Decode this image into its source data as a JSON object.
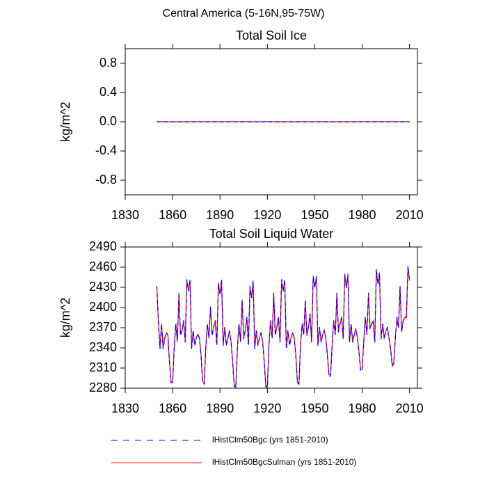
{
  "title": "Central America (5-16N,95-75W)",
  "chart_data": [
    {
      "type": "line",
      "title": "Total Soil Ice",
      "ylabel": "kg/m^2",
      "xlim": [
        1830,
        2015
      ],
      "xticks": [
        1830,
        1860,
        1890,
        1920,
        1950,
        1980,
        2010
      ],
      "ylim": [
        -1,
        1
      ],
      "yticks": [
        {
          "value": 0.8,
          "label": "0.8"
        },
        {
          "value": 0.4,
          "label": "0.4"
        },
        {
          "value": 0,
          "label": "0.0"
        },
        {
          "value": -0.4,
          "label": "-0.4"
        },
        {
          "value": -0.8,
          "label": "-0.8"
        }
      ],
      "x": [
        1850,
        1851,
        1852,
        1853,
        1854,
        1855,
        1856,
        1857,
        1858,
        1859,
        1860,
        1861,
        1862,
        1863,
        1864,
        1865,
        1866,
        1867,
        1868,
        1869,
        1870,
        1871,
        1872,
        1873,
        1874,
        1875,
        1876,
        1877,
        1878,
        1879,
        1880,
        1881,
        1882,
        1883,
        1884,
        1885,
        1886,
        1887,
        1888,
        1889,
        1890,
        1891,
        1892,
        1893,
        1894,
        1895,
        1896,
        1897,
        1898,
        1899,
        1900,
        1901,
        1902,
        1903,
        1904,
        1905,
        1906,
        1907,
        1908,
        1909,
        1910,
        1911,
        1912,
        1913,
        1914,
        1915,
        1916,
        1917,
        1918,
        1919,
        1920,
        1921,
        1922,
        1923,
        1924,
        1925,
        1926,
        1927,
        1928,
        1929,
        1930,
        1931,
        1932,
        1933,
        1934,
        1935,
        1936,
        1937,
        1938,
        1939,
        1940,
        1941,
        1942,
        1943,
        1944,
        1945,
        1946,
        1947,
        1948,
        1949,
        1950,
        1951,
        1952,
        1953,
        1954,
        1955,
        1956,
        1957,
        1958,
        1959,
        1960,
        1961,
        1962,
        1963,
        1964,
        1965,
        1966,
        1967,
        1968,
        1969,
        1970,
        1971,
        1972,
        1973,
        1974,
        1975,
        1976,
        1977,
        1978,
        1979,
        1980,
        1981,
        1982,
        1983,
        1984,
        1985,
        1986,
        1987,
        1988,
        1989,
        1990,
        1991,
        1992,
        1993,
        1994,
        1995,
        1996,
        1997,
        1998,
        1999,
        2000,
        2001,
        2002,
        2003,
        2004,
        2005,
        2006,
        2007,
        2008,
        2009,
        2010
      ],
      "series": [
        {
          "color": "#ff0000",
          "dashed": false,
          "values": [
            0,
            0,
            0,
            0,
            0,
            0,
            0,
            0,
            0,
            0,
            0,
            0,
            0,
            0,
            0,
            0,
            0,
            0,
            0,
            0,
            0,
            0,
            0,
            0,
            0,
            0,
            0,
            0,
            0,
            0,
            0,
            0,
            0,
            0,
            0,
            0,
            0,
            0,
            0,
            0,
            0,
            0,
            0,
            0,
            0,
            0,
            0,
            0,
            0,
            0,
            0,
            0,
            0,
            0,
            0,
            0,
            0,
            0,
            0,
            0,
            0,
            0,
            0,
            0,
            0,
            0,
            0,
            0,
            0,
            0,
            0,
            0,
            0,
            0,
            0,
            0,
            0,
            0,
            0,
            0,
            0,
            0,
            0,
            0,
            0,
            0,
            0,
            0,
            0,
            0,
            0,
            0,
            0,
            0,
            0,
            0,
            0,
            0,
            0,
            0,
            0,
            0,
            0,
            0,
            0,
            0,
            0,
            0,
            0,
            0,
            0,
            0,
            0,
            0,
            0,
            0,
            0,
            0,
            0,
            0,
            0,
            0,
            0,
            0,
            0,
            0,
            0,
            0,
            0,
            0,
            0,
            0,
            0,
            0,
            0,
            0,
            0,
            0,
            0,
            0,
            0,
            0,
            0,
            0,
            0,
            0,
            0,
            0,
            0,
            0,
            0,
            0,
            0,
            0,
            0,
            0,
            0,
            0,
            0,
            0,
            0
          ]
        },
        {
          "color": "#0000ff",
          "dashed": true,
          "values": [
            0,
            0,
            0,
            0,
            0,
            0,
            0,
            0,
            0,
            0,
            0,
            0,
            0,
            0,
            0,
            0,
            0,
            0,
            0,
            0,
            0,
            0,
            0,
            0,
            0,
            0,
            0,
            0,
            0,
            0,
            0,
            0,
            0,
            0,
            0,
            0,
            0,
            0,
            0,
            0,
            0,
            0,
            0,
            0,
            0,
            0,
            0,
            0,
            0,
            0,
            0,
            0,
            0,
            0,
            0,
            0,
            0,
            0,
            0,
            0,
            0,
            0,
            0,
            0,
            0,
            0,
            0,
            0,
            0,
            0,
            0,
            0,
            0,
            0,
            0,
            0,
            0,
            0,
            0,
            0,
            0,
            0,
            0,
            0,
            0,
            0,
            0,
            0,
            0,
            0,
            0,
            0,
            0,
            0,
            0,
            0,
            0,
            0,
            0,
            0,
            0,
            0,
            0,
            0,
            0,
            0,
            0,
            0,
            0,
            0,
            0,
            0,
            0,
            0,
            0,
            0,
            0,
            0,
            0,
            0,
            0,
            0,
            0,
            0,
            0,
            0,
            0,
            0,
            0,
            0,
            0,
            0,
            0,
            0,
            0,
            0,
            0,
            0,
            0,
            0,
            0,
            0,
            0,
            0,
            0,
            0,
            0,
            0,
            0,
            0,
            0,
            0,
            0,
            0,
            0,
            0,
            0,
            0,
            0,
            0,
            0
          ]
        }
      ]
    },
    {
      "type": "line",
      "title": "Total Soil Liquid Water",
      "ylabel": "kg/m^2",
      "xlim": [
        1830,
        2015
      ],
      "xticks": [
        1830,
        1860,
        1890,
        1920,
        1950,
        1980,
        2010
      ],
      "ylim": [
        2280,
        2490
      ],
      "yticks": [
        2280,
        2310,
        2340,
        2370,
        2400,
        2430,
        2460,
        2490
      ],
      "x": [
        1850,
        1851,
        1852,
        1853,
        1854,
        1855,
        1856,
        1857,
        1858,
        1859,
        1860,
        1861,
        1862,
        1863,
        1864,
        1865,
        1866,
        1867,
        1868,
        1869,
        1870,
        1871,
        1872,
        1873,
        1874,
        1875,
        1876,
        1877,
        1878,
        1879,
        1880,
        1881,
        1882,
        1883,
        1884,
        1885,
        1886,
        1887,
        1888,
        1889,
        1890,
        1891,
        1892,
        1893,
        1894,
        1895,
        1896,
        1897,
        1898,
        1899,
        1900,
        1901,
        1902,
        1903,
        1904,
        1905,
        1906,
        1907,
        1908,
        1909,
        1910,
        1911,
        1912,
        1913,
        1914,
        1915,
        1916,
        1917,
        1918,
        1919,
        1920,
        1921,
        1922,
        1923,
        1924,
        1925,
        1926,
        1927,
        1928,
        1929,
        1930,
        1931,
        1932,
        1933,
        1934,
        1935,
        1936,
        1937,
        1938,
        1939,
        1940,
        1941,
        1942,
        1943,
        1944,
        1945,
        1946,
        1947,
        1948,
        1949,
        1950,
        1951,
        1952,
        1953,
        1954,
        1955,
        1956,
        1957,
        1958,
        1959,
        1960,
        1961,
        1962,
        1963,
        1964,
        1965,
        1966,
        1967,
        1968,
        1969,
        1970,
        1971,
        1972,
        1973,
        1974,
        1975,
        1976,
        1977,
        1978,
        1979,
        1980,
        1981,
        1982,
        1983,
        1984,
        1985,
        1986,
        1987,
        1988,
        1989,
        1990,
        1991,
        1992,
        1993,
        1994,
        1995,
        1996,
        1997,
        1998,
        1999,
        2000,
        2001,
        2002,
        2003,
        2004,
        2005,
        2006,
        2007,
        2008,
        2009,
        2010
      ],
      "series": [
        {
          "name": "lHistClm50BgcSulman (yrs 1851-2010)",
          "color": "#ff0000",
          "dashed": false,
          "values": [
            2430,
            2380,
            2340,
            2375,
            2340,
            2355,
            2362,
            2360,
            2320,
            2290,
            2290,
            2340,
            2375,
            2350,
            2420,
            2360,
            2365,
            2380,
            2350,
            2440,
            2425,
            2440,
            2340,
            2365,
            2345,
            2355,
            2360,
            2355,
            2330,
            2290,
            2288,
            2340,
            2375,
            2355,
            2400,
            2360,
            2370,
            2380,
            2345,
            2435,
            2420,
            2440,
            2345,
            2370,
            2345,
            2355,
            2365,
            2350,
            2320,
            2285,
            2282,
            2340,
            2375,
            2350,
            2410,
            2355,
            2365,
            2385,
            2345,
            2430,
            2415,
            2438,
            2340,
            2365,
            2345,
            2355,
            2362,
            2350,
            2320,
            2284,
            2282,
            2345,
            2380,
            2355,
            2420,
            2360,
            2370,
            2385,
            2350,
            2440,
            2425,
            2440,
            2340,
            2365,
            2345,
            2355,
            2362,
            2355,
            2330,
            2290,
            2288,
            2345,
            2375,
            2360,
            2410,
            2360,
            2370,
            2390,
            2350,
            2445,
            2430,
            2445,
            2345,
            2370,
            2350,
            2360,
            2365,
            2355,
            2330,
            2300,
            2300,
            2345,
            2380,
            2360,
            2420,
            2365,
            2375,
            2385,
            2355,
            2448,
            2430,
            2448,
            2350,
            2375,
            2350,
            2360,
            2368,
            2355,
            2335,
            2308,
            2308,
            2350,
            2385,
            2360,
            2420,
            2370,
            2375,
            2380,
            2350,
            2455,
            2435,
            2450,
            2355,
            2375,
            2355,
            2365,
            2370,
            2355,
            2340,
            2315,
            2318,
            2355,
            2385,
            2370,
            2430,
            2365,
            2380,
            2385,
            2385,
            2460,
            2440
          ]
        },
        {
          "name": "lHistClm50Bgc (yrs 1851-2010)",
          "color": "#0000ff",
          "dashed": true,
          "values": [
            2432,
            2378,
            2338,
            2376,
            2338,
            2354,
            2363,
            2359,
            2318,
            2288,
            2288,
            2338,
            2376,
            2349,
            2422,
            2358,
            2366,
            2381,
            2348,
            2442,
            2424,
            2442,
            2338,
            2366,
            2343,
            2354,
            2361,
            2354,
            2328,
            2288,
            2286,
            2338,
            2376,
            2354,
            2402,
            2358,
            2371,
            2381,
            2343,
            2437,
            2419,
            2442,
            2343,
            2371,
            2343,
            2354,
            2366,
            2349,
            2318,
            2283,
            2280,
            2338,
            2376,
            2349,
            2412,
            2353,
            2366,
            2386,
            2343,
            2432,
            2414,
            2440,
            2338,
            2366,
            2343,
            2354,
            2363,
            2349,
            2318,
            2282,
            2280,
            2343,
            2381,
            2354,
            2422,
            2358,
            2371,
            2386,
            2348,
            2442,
            2424,
            2442,
            2338,
            2366,
            2343,
            2354,
            2363,
            2354,
            2328,
            2288,
            2286,
            2343,
            2376,
            2359,
            2412,
            2358,
            2371,
            2391,
            2348,
            2447,
            2429,
            2447,
            2343,
            2371,
            2348,
            2359,
            2366,
            2354,
            2328,
            2298,
            2298,
            2343,
            2381,
            2359,
            2422,
            2363,
            2376,
            2386,
            2353,
            2450,
            2429,
            2450,
            2348,
            2376,
            2348,
            2359,
            2369,
            2354,
            2333,
            2306,
            2306,
            2348,
            2386,
            2359,
            2422,
            2368,
            2376,
            2381,
            2348,
            2457,
            2434,
            2452,
            2353,
            2376,
            2353,
            2364,
            2371,
            2354,
            2338,
            2313,
            2316,
            2353,
            2386,
            2369,
            2432,
            2363,
            2381,
            2386,
            2386,
            2462,
            2442
          ]
        }
      ]
    }
  ]
}
